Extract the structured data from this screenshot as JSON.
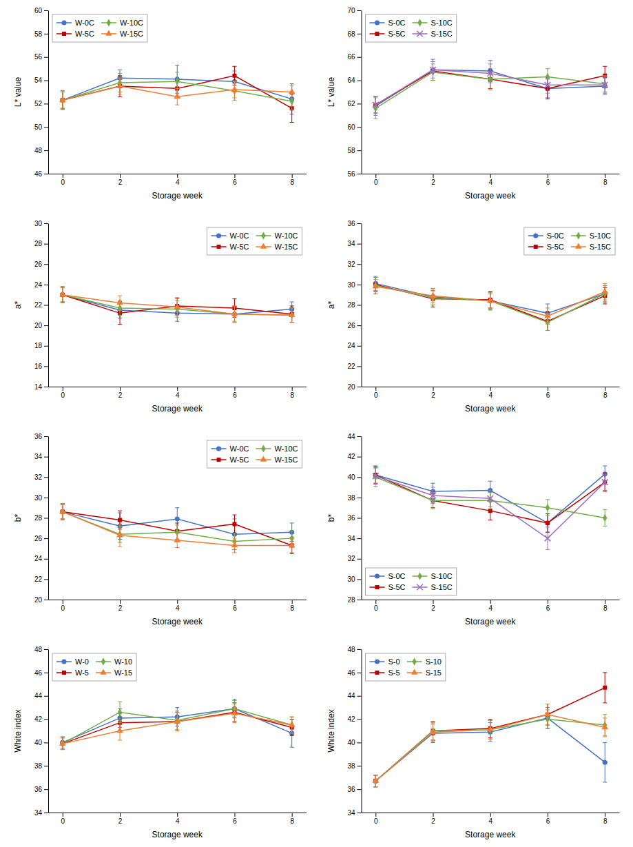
{
  "chart_data": [
    {
      "type": "line",
      "xlabel": "Storage week",
      "ylabel": "L* value",
      "x": [
        0,
        2,
        4,
        6,
        8
      ],
      "xlim": [
        -0.5,
        8.5
      ],
      "xticks": [
        0,
        2,
        4,
        6,
        8
      ],
      "ylim": [
        46,
        60
      ],
      "yticks": [
        46,
        48,
        50,
        52,
        54,
        56,
        58,
        60
      ],
      "grid": false,
      "legend": "upper left",
      "series": [
        {
          "name": "W-0C",
          "color": "#4472c4",
          "marker": "circle",
          "values": [
            52.3,
            54.2,
            54.1,
            53.9,
            52.4
          ],
          "yerr": [
            0.8,
            0.7,
            1.2,
            0.9,
            1.3
          ]
        },
        {
          "name": "W-5C",
          "color": "#c00000",
          "marker": "square",
          "values": [
            52.3,
            53.5,
            53.3,
            54.4,
            51.6
          ],
          "yerr": [
            0.7,
            0.9,
            0.7,
            0.8,
            1.2
          ]
        },
        {
          "name": "W-10C",
          "color": "#70ad47",
          "marker": "diamond",
          "values": [
            52.3,
            53.8,
            53.9,
            53.1,
            52.2
          ],
          "yerr": [
            0.8,
            0.8,
            0.8,
            0.8,
            0.7
          ]
        },
        {
          "name": "W-15C",
          "color": "#ed7d31",
          "marker": "triangle",
          "values": [
            52.3,
            53.5,
            52.6,
            53.2,
            53.0
          ],
          "yerr": [
            0.7,
            0.7,
            0.7,
            0.7,
            0.6
          ]
        }
      ]
    },
    {
      "type": "line",
      "xlabel": "Storage week",
      "ylabel": "L* value",
      "x": [
        0,
        2,
        4,
        6,
        8
      ],
      "xlim": [
        -0.5,
        8.5
      ],
      "xticks": [
        0,
        2,
        4,
        6,
        8
      ],
      "ylim": [
        56,
        70
      ],
      "yticks": [
        56,
        58,
        60,
        62,
        64,
        66,
        68,
        70
      ],
      "grid": false,
      "legend": "upper left",
      "series": [
        {
          "name": "S-0C",
          "color": "#4472c4",
          "marker": "circle",
          "values": [
            61.8,
            64.9,
            64.8,
            63.3,
            63.5
          ],
          "yerr": [
            0.8,
            0.9,
            0.9,
            0.8,
            0.7
          ]
        },
        {
          "name": "S-5C",
          "color": "#c00000",
          "marker": "square",
          "values": [
            61.9,
            64.8,
            64.1,
            63.3,
            64.4
          ],
          "yerr": [
            0.7,
            0.8,
            0.8,
            0.9,
            0.8
          ]
        },
        {
          "name": "S-10C",
          "color": "#70ad47",
          "marker": "diamond",
          "values": [
            61.6,
            64.7,
            64.1,
            64.3,
            63.7
          ],
          "yerr": [
            0.9,
            0.7,
            0.9,
            0.7,
            0.7
          ]
        },
        {
          "name": "S-15C",
          "color": "#9e6ebd",
          "marker": "cross",
          "values": [
            61.9,
            64.9,
            64.6,
            63.6,
            63.6
          ],
          "yerr": [
            0.7,
            0.7,
            0.8,
            0.7,
            0.7
          ]
        }
      ]
    },
    {
      "type": "line",
      "xlabel": "Storage week",
      "ylabel": "a*",
      "x": [
        0,
        2,
        4,
        6,
        8
      ],
      "xlim": [
        -0.5,
        8.5
      ],
      "xticks": [
        0,
        2,
        4,
        6,
        8
      ],
      "ylim": [
        14,
        30
      ],
      "yticks": [
        14,
        16,
        18,
        20,
        22,
        24,
        26,
        28,
        30
      ],
      "grid": false,
      "legend": "upper right",
      "series": [
        {
          "name": "W-0C",
          "color": "#4472c4",
          "marker": "circle",
          "values": [
            23.0,
            21.5,
            21.2,
            21.1,
            21.6
          ],
          "yerr": [
            0.8,
            0.8,
            0.8,
            0.8,
            0.7
          ]
        },
        {
          "name": "W-5C",
          "color": "#c00000",
          "marker": "square",
          "values": [
            23.0,
            21.2,
            21.9,
            21.7,
            21.1
          ],
          "yerr": [
            0.7,
            1.1,
            0.8,
            0.9,
            0.8
          ]
        },
        {
          "name": "W-10C",
          "color": "#70ad47",
          "marker": "diamond",
          "values": [
            23.0,
            21.7,
            21.6,
            21.1,
            21.0
          ],
          "yerr": [
            0.7,
            0.7,
            0.8,
            0.7,
            0.7
          ]
        },
        {
          "name": "W-15C",
          "color": "#ed7d31",
          "marker": "triangle",
          "values": [
            23.0,
            22.2,
            21.8,
            21.1,
            21.0
          ],
          "yerr": [
            0.8,
            0.7,
            0.8,
            0.8,
            0.7
          ]
        }
      ]
    },
    {
      "type": "line",
      "xlabel": "Storage week",
      "ylabel": "a*",
      "x": [
        0,
        2,
        4,
        6,
        8
      ],
      "xlim": [
        -0.5,
        8.5
      ],
      "xticks": [
        0,
        2,
        4,
        6,
        8
      ],
      "ylim": [
        20,
        36
      ],
      "yticks": [
        20,
        22,
        24,
        26,
        28,
        30,
        32,
        34,
        36
      ],
      "grid": false,
      "legend": "upper right",
      "series": [
        {
          "name": "S-0C",
          "color": "#4472c4",
          "marker": "circle",
          "values": [
            30.1,
            28.8,
            28.4,
            27.2,
            29.1
          ],
          "yerr": [
            0.7,
            0.8,
            0.9,
            0.9,
            0.8
          ]
        },
        {
          "name": "S-5C",
          "color": "#c00000",
          "marker": "square",
          "values": [
            30.0,
            28.6,
            28.5,
            26.4,
            28.9
          ],
          "yerr": [
            0.7,
            0.8,
            0.8,
            0.9,
            0.8
          ]
        },
        {
          "name": "S-10C",
          "color": "#70ad47",
          "marker": "diamond",
          "values": [
            29.9,
            28.7,
            28.4,
            26.3,
            29.1
          ],
          "yerr": [
            0.8,
            0.7,
            0.8,
            0.8,
            0.8
          ]
        },
        {
          "name": "S-15C",
          "color": "#ed7d31",
          "marker": "triangle",
          "values": [
            29.8,
            28.9,
            28.4,
            26.9,
            29.3
          ],
          "yerr": [
            0.7,
            0.7,
            0.7,
            0.8,
            0.8
          ]
        }
      ]
    },
    {
      "type": "line",
      "xlabel": "Storage week",
      "ylabel": "b*",
      "x": [
        0,
        2,
        4,
        6,
        8
      ],
      "xlim": [
        -0.5,
        8.5
      ],
      "xticks": [
        0,
        2,
        4,
        6,
        8
      ],
      "ylim": [
        20,
        36
      ],
      "yticks": [
        20,
        22,
        24,
        26,
        28,
        30,
        32,
        34,
        36
      ],
      "grid": false,
      "legend": "upper right",
      "series": [
        {
          "name": "W-0C",
          "color": "#4472c4",
          "marker": "circle",
          "values": [
            28.6,
            27.2,
            27.9,
            26.4,
            26.6
          ],
          "yerr": [
            0.8,
            1.3,
            1.1,
            1.5,
            0.9
          ]
        },
        {
          "name": "W-5C",
          "color": "#c00000",
          "marker": "square",
          "values": [
            28.6,
            27.8,
            26.7,
            27.4,
            25.3
          ],
          "yerr": [
            0.7,
            0.9,
            0.8,
            0.9,
            0.8
          ]
        },
        {
          "name": "W-10C",
          "color": "#70ad47",
          "marker": "diamond",
          "values": [
            28.6,
            26.4,
            26.6,
            25.7,
            26.0
          ],
          "yerr": [
            0.8,
            0.8,
            0.7,
            0.8,
            0.7
          ]
        },
        {
          "name": "W-15C",
          "color": "#ed7d31",
          "marker": "triangle",
          "values": [
            28.6,
            26.3,
            25.8,
            25.3,
            25.3
          ],
          "yerr": [
            0.7,
            1.1,
            0.7,
            0.7,
            0.7
          ]
        }
      ]
    },
    {
      "type": "line",
      "xlabel": "Storage week",
      "ylabel": "b*",
      "x": [
        0,
        2,
        4,
        6,
        8
      ],
      "xlim": [
        -0.5,
        8.5
      ],
      "xticks": [
        0,
        2,
        4,
        6,
        8
      ],
      "ylim": [
        28,
        44
      ],
      "yticks": [
        28,
        30,
        32,
        34,
        36,
        38,
        40,
        42,
        44
      ],
      "grid": false,
      "legend": "lower left",
      "series": [
        {
          "name": "S-0C",
          "color": "#4472c4",
          "marker": "circle",
          "values": [
            40.2,
            38.6,
            38.7,
            35.5,
            40.3
          ],
          "yerr": [
            0.9,
            0.8,
            0.9,
            0.9,
            0.8
          ]
        },
        {
          "name": "S-5C",
          "color": "#c00000",
          "marker": "square",
          "values": [
            40.2,
            37.7,
            36.7,
            35.5,
            39.5
          ],
          "yerr": [
            0.8,
            0.7,
            0.9,
            0.9,
            0.9
          ]
        },
        {
          "name": "S-10C",
          "color": "#70ad47",
          "marker": "diamond",
          "values": [
            40.0,
            37.7,
            37.7,
            37.0,
            36.0
          ],
          "yerr": [
            0.9,
            0.8,
            0.8,
            0.8,
            0.8
          ]
        },
        {
          "name": "S-15C",
          "color": "#9e6ebd",
          "marker": "cross",
          "values": [
            40.1,
            38.2,
            37.9,
            34.0,
            39.5
          ],
          "yerr": [
            0.8,
            0.8,
            0.8,
            1.1,
            0.8
          ]
        }
      ]
    },
    {
      "type": "line",
      "xlabel": "Storage week",
      "ylabel": "White index",
      "x": [
        0,
        2,
        4,
        6,
        8
      ],
      "xlim": [
        -0.5,
        8.5
      ],
      "xticks": [
        0,
        2,
        4,
        6,
        8
      ],
      "ylim": [
        34,
        48
      ],
      "yticks": [
        34,
        36,
        38,
        40,
        42,
        44,
        46,
        48
      ],
      "grid": false,
      "legend": "upper left",
      "series": [
        {
          "name": "W-0",
          "color": "#4472c4",
          "marker": "circle",
          "values": [
            40.0,
            42.1,
            42.2,
            42.9,
            40.8
          ],
          "yerr": [
            0.5,
            0.8,
            0.8,
            0.8,
            1.2
          ]
        },
        {
          "name": "W-5",
          "color": "#c00000",
          "marker": "square",
          "values": [
            39.9,
            41.7,
            41.8,
            42.6,
            41.3
          ],
          "yerr": [
            0.5,
            0.8,
            0.8,
            0.8,
            0.7
          ]
        },
        {
          "name": "W-10",
          "color": "#70ad47",
          "marker": "diamond",
          "values": [
            39.9,
            42.6,
            41.9,
            42.9,
            41.5
          ],
          "yerr": [
            0.5,
            0.9,
            0.8,
            0.7,
            0.7
          ]
        },
        {
          "name": "W-15",
          "color": "#ed7d31",
          "marker": "triangle",
          "values": [
            39.9,
            41.0,
            41.8,
            42.5,
            41.5
          ],
          "yerr": [
            0.5,
            0.8,
            0.8,
            0.8,
            0.7
          ]
        }
      ]
    },
    {
      "type": "line",
      "xlabel": "Storage week",
      "ylabel": "White index",
      "x": [
        0,
        2,
        4,
        6,
        8
      ],
      "xlim": [
        -0.5,
        8.5
      ],
      "xticks": [
        0,
        2,
        4,
        6,
        8
      ],
      "ylim": [
        34,
        48
      ],
      "yticks": [
        34,
        36,
        38,
        40,
        42,
        44,
        46,
        48
      ],
      "grid": false,
      "legend": "upper left",
      "series": [
        {
          "name": "S-0",
          "color": "#4472c4",
          "marker": "circle",
          "values": [
            36.7,
            40.8,
            40.9,
            42.1,
            38.3
          ],
          "yerr": [
            0.5,
            0.8,
            0.8,
            0.9,
            1.7
          ]
        },
        {
          "name": "S-5",
          "color": "#c00000",
          "marker": "square",
          "values": [
            36.7,
            41.0,
            41.2,
            42.4,
            44.7
          ],
          "yerr": [
            0.5,
            0.8,
            0.8,
            0.9,
            1.3
          ]
        },
        {
          "name": "S-10",
          "color": "#70ad47",
          "marker": "diamond",
          "values": [
            36.7,
            41.0,
            41.1,
            42.0,
            41.5
          ],
          "yerr": [
            0.5,
            0.8,
            0.8,
            0.8,
            0.9
          ]
        },
        {
          "name": "S-15",
          "color": "#ed7d31",
          "marker": "triangle",
          "values": [
            36.7,
            40.9,
            41.1,
            42.4,
            41.3
          ],
          "yerr": [
            0.5,
            0.8,
            0.8,
            0.9,
            0.8
          ]
        }
      ]
    }
  ]
}
